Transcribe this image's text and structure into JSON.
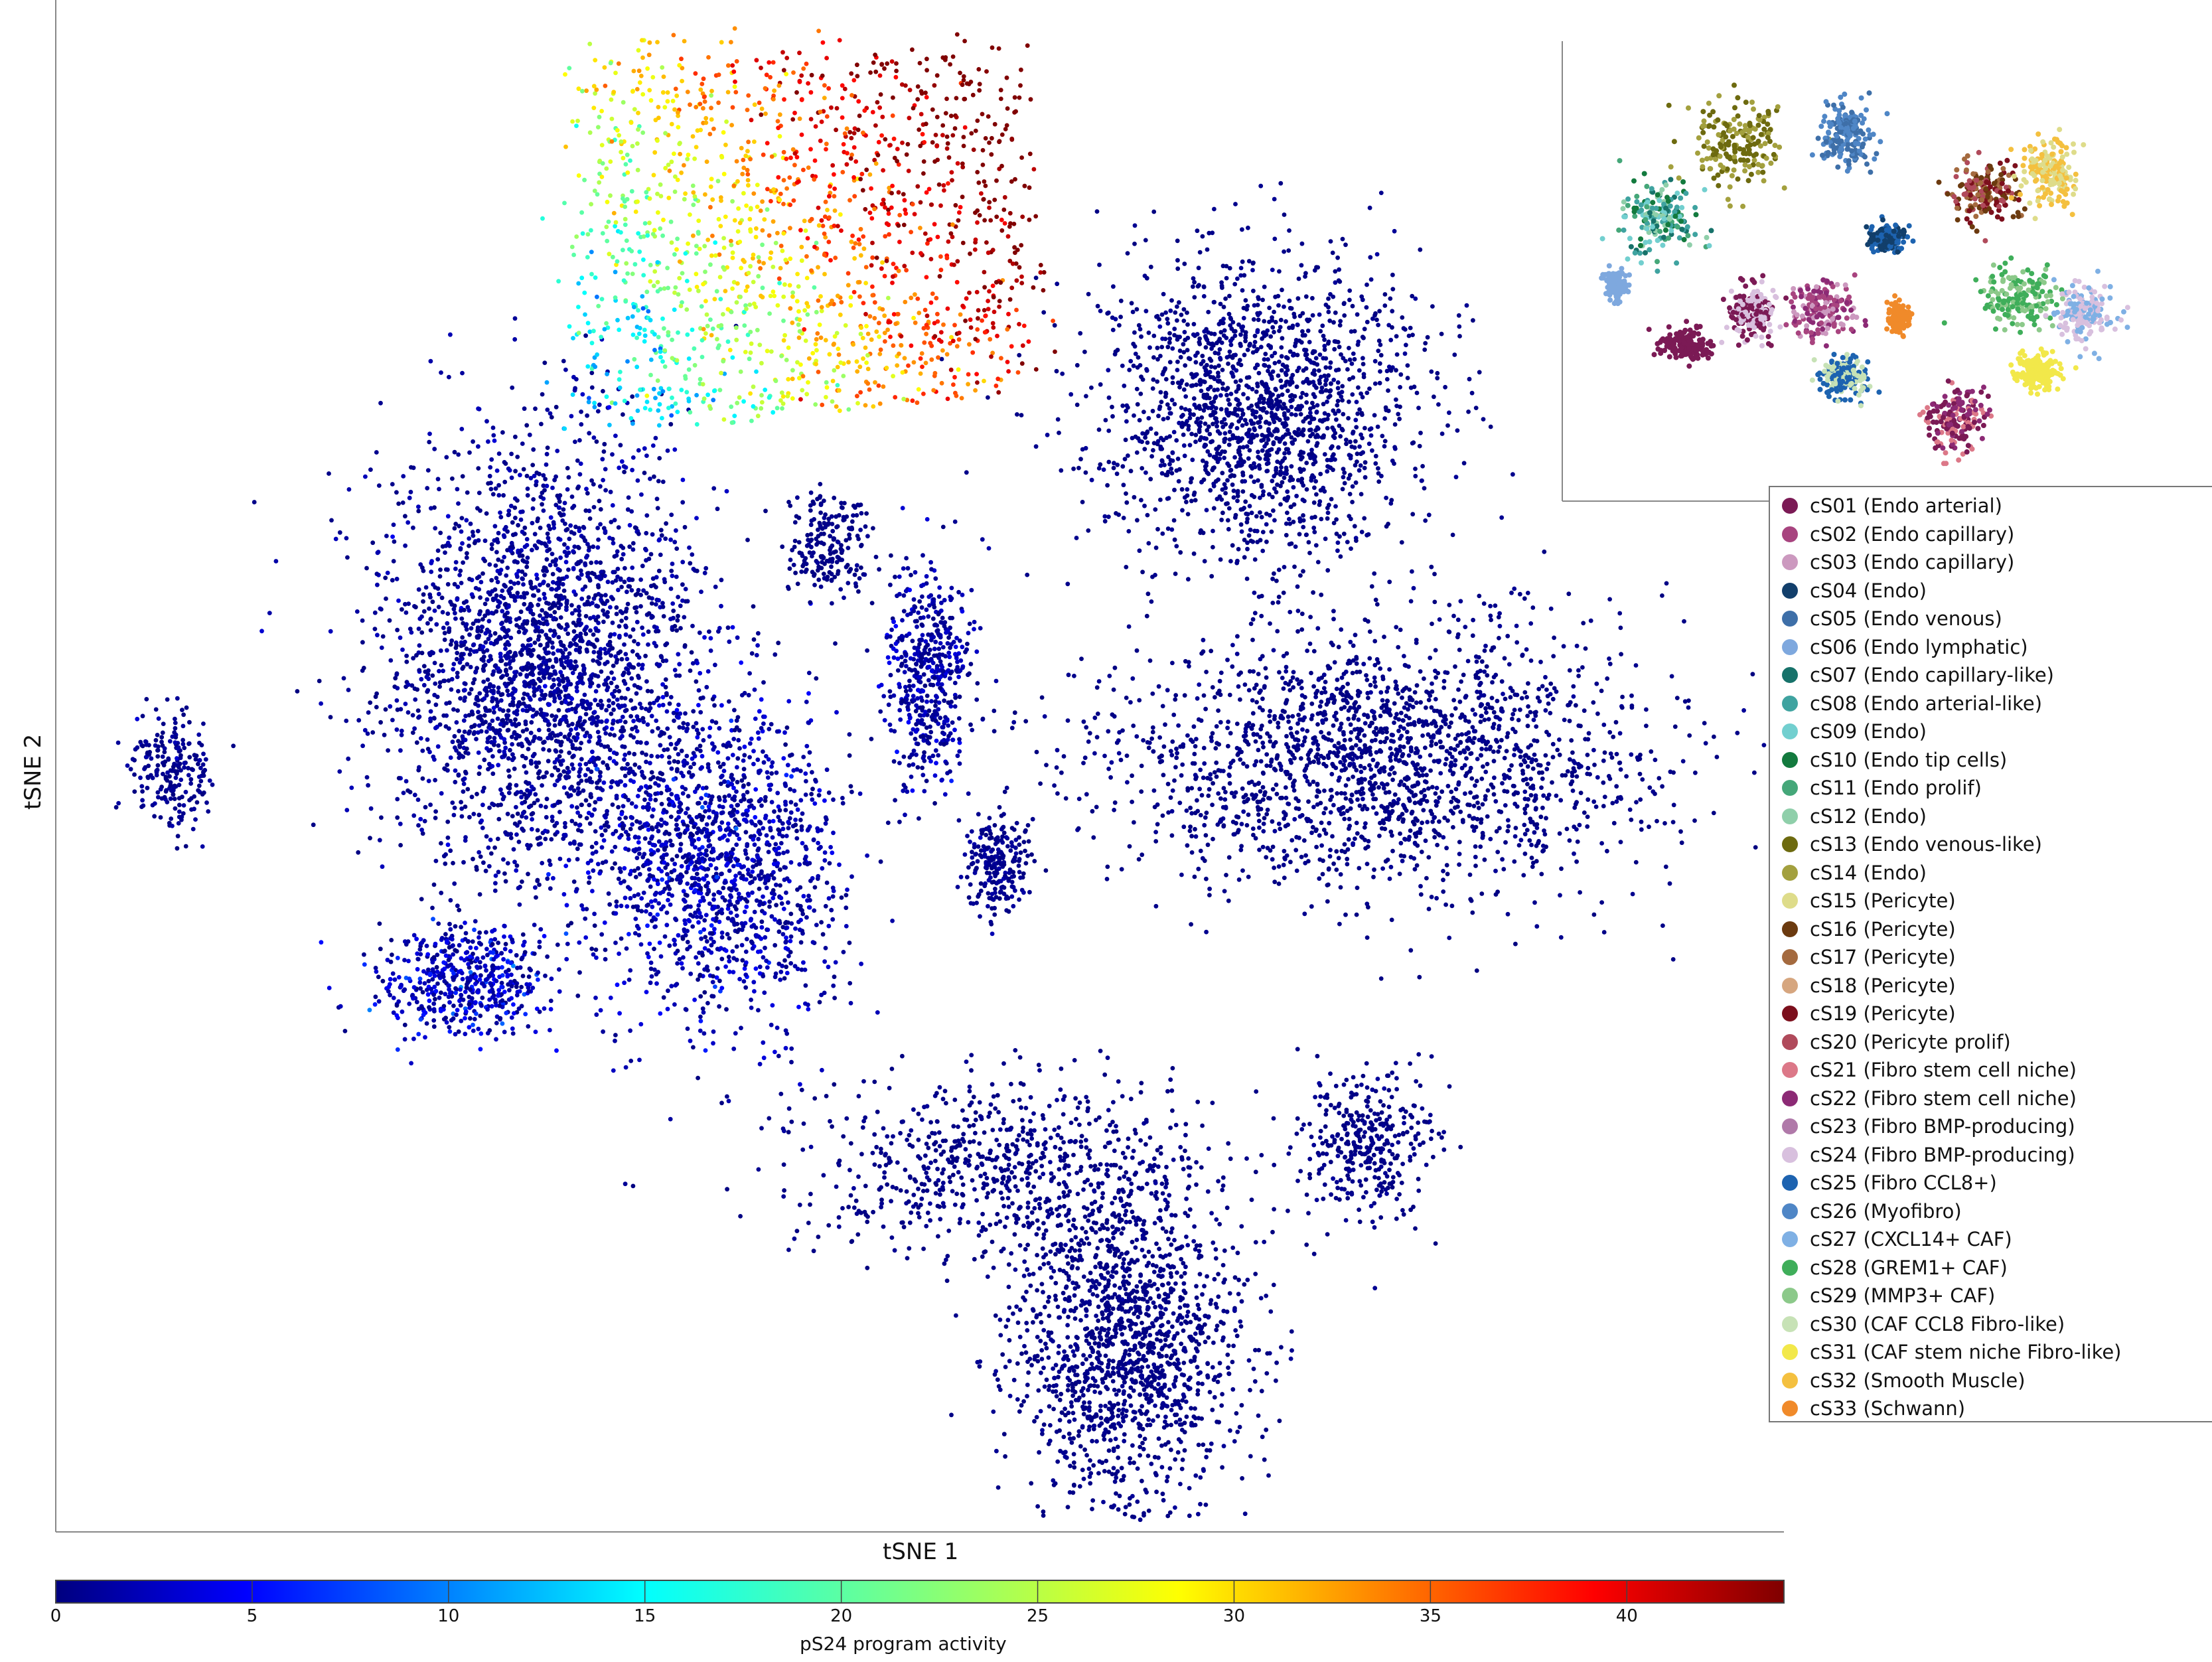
{
  "chart_data": {
    "type": "scatter",
    "xlabel": "tSNE 1",
    "ylabel": "tSNE 2",
    "colorbar": {
      "label": "pS24 program activity",
      "range": [
        0,
        44
      ],
      "ticks": [
        0,
        5,
        10,
        15,
        20,
        25,
        30,
        35,
        40
      ],
      "colormap": "jet"
    },
    "inset": {
      "type": "scatter",
      "legend_placement": "right",
      "legend": [
        {
          "label": "cS01 (Endo arterial)",
          "color": "#7b1a55"
        },
        {
          "label": "cS02 (Endo capillary)",
          "color": "#a8447f"
        },
        {
          "label": "cS03 (Endo capillary)",
          "color": "#cc99bf"
        },
        {
          "label": "cS04 (Endo)",
          "color": "#123f6b"
        },
        {
          "label": "cS05 (Endo venous)",
          "color": "#3e6fa8"
        },
        {
          "label": "cS06 (Endo lymphatic)",
          "color": "#7ea8de"
        },
        {
          "label": "cS07 (Endo capillary-like)",
          "color": "#17726a"
        },
        {
          "label": "cS08 (Endo arterial-like)",
          "color": "#3fa3a0"
        },
        {
          "label": "cS09 (Endo)",
          "color": "#72cfcf"
        },
        {
          "label": "cS10 (Endo tip cells)",
          "color": "#137a3e"
        },
        {
          "label": "cS11 (Endo prolif)",
          "color": "#45a779"
        },
        {
          "label": "cS12 (Endo)",
          "color": "#8fcfaa"
        },
        {
          "label": "cS13 (Endo venous-like)",
          "color": "#6d6a0f"
        },
        {
          "label": "cS14 (Endo)",
          "color": "#a3a03e"
        },
        {
          "label": "cS15 (Pericyte)",
          "color": "#dedc8a"
        },
        {
          "label": "cS16 (Pericyte)",
          "color": "#6b3a0f"
        },
        {
          "label": "cS17 (Pericyte)",
          "color": "#a46a3f"
        },
        {
          "label": "cS18 (Pericyte)",
          "color": "#d6a67f"
        },
        {
          "label": "cS19 (Pericyte)",
          "color": "#7c0f1c"
        },
        {
          "label": "cS20 (Pericyte prolif)",
          "color": "#b04a5b"
        },
        {
          "label": "cS21 (Fibro stem cell niche)",
          "color": "#dc7888"
        },
        {
          "label": "cS22 (Fibro stem cell niche)",
          "color": "#8c2a75"
        },
        {
          "label": "cS23 (Fibro BMP-producing)",
          "color": "#b079a9"
        },
        {
          "label": "cS24 (Fibro BMP-producing)",
          "color": "#d8c0de"
        },
        {
          "label": "cS25 (Fibro CCL8+)",
          "color": "#1d63b0"
        },
        {
          "label": "cS26 (Myofibro)",
          "color": "#4f86c6"
        },
        {
          "label": "cS27 (CXCL14+ CAF)",
          "color": "#7fb0e4"
        },
        {
          "label": "cS28 (GREM1+ CAF)",
          "color": "#3fae5a"
        },
        {
          "label": "cS29 (MMP3+ CAF)",
          "color": "#8cc98a"
        },
        {
          "label": "cS30 (CAF CCL8 Fibro-like)",
          "color": "#c7e2b6"
        },
        {
          "label": "cS31 (CAF stem niche Fibro-like)",
          "color": "#f2e84a"
        },
        {
          "label": "cS32 (Smooth Muscle)",
          "color": "#f4c03f"
        },
        {
          "label": "cS33 (Schwann)",
          "color": "#f08a2a"
        }
      ]
    }
  }
}
